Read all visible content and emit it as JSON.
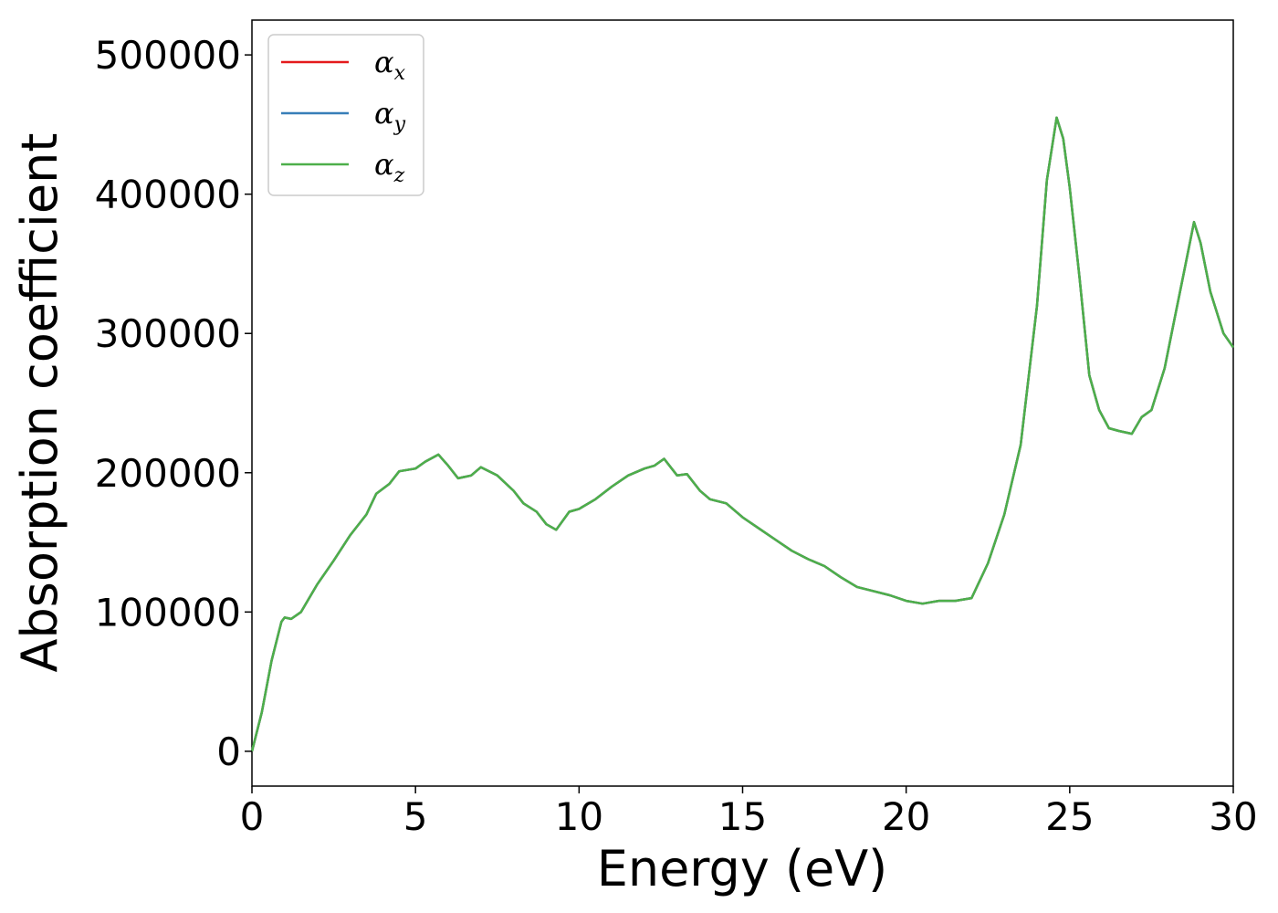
{
  "chart_data": {
    "type": "line",
    "xlabel": "Energy (eV)",
    "ylabel": "Absorption coefficient",
    "xlim": [
      0,
      30
    ],
    "ylim": [
      -25000,
      525000
    ],
    "x_ticks": [
      "0",
      "5",
      "10",
      "15",
      "20",
      "25",
      "30"
    ],
    "y_ticks": [
      "0",
      "100000",
      "200000",
      "300000",
      "400000",
      "500000"
    ],
    "grid": false,
    "legend_position": "top-left",
    "series": [
      {
        "name": "α_x",
        "legend_symbol": "α",
        "legend_subscript": "x",
        "color": "#e41a1c",
        "x": [
          0,
          0.3,
          0.6,
          0.9,
          1.0,
          1.2,
          1.5,
          2.0,
          2.5,
          3.0,
          3.5,
          3.8,
          4.2,
          4.5,
          5.0,
          5.3,
          5.7,
          6.0,
          6.3,
          6.7,
          7.0,
          7.5,
          8.0,
          8.3,
          8.7,
          9.0,
          9.3,
          9.7,
          10.0,
          10.5,
          11.0,
          11.5,
          12.0,
          12.3,
          12.6,
          13.0,
          13.3,
          13.7,
          14.0,
          14.5,
          15.0,
          15.5,
          16.0,
          16.5,
          17.0,
          17.5,
          18.0,
          18.5,
          19.0,
          19.5,
          20.0,
          20.5,
          21.0,
          21.5,
          22.0,
          22.5,
          23.0,
          23.5,
          24.0,
          24.3,
          24.6,
          24.8,
          25.0,
          25.3,
          25.6,
          25.9,
          26.2,
          26.5,
          26.9,
          27.2,
          27.5,
          27.9,
          28.2,
          28.5,
          28.8,
          29.0,
          29.3,
          29.7,
          30.0
        ],
        "values": [
          0,
          28000,
          65000,
          93000,
          96000,
          95000,
          100000,
          120000,
          137000,
          155000,
          170000,
          185000,
          192000,
          201000,
          203000,
          208000,
          213000,
          205000,
          196000,
          198000,
          204000,
          198000,
          187000,
          178000,
          172000,
          163000,
          159000,
          172000,
          174000,
          181000,
          190000,
          198000,
          203000,
          205000,
          210000,
          198000,
          199000,
          187000,
          181000,
          178000,
          168000,
          160000,
          152000,
          144000,
          138000,
          133000,
          125000,
          118000,
          115000,
          112000,
          108000,
          106000,
          108000,
          108000,
          110000,
          135000,
          170000,
          220000,
          320000,
          410000,
          455000,
          440000,
          405000,
          340000,
          270000,
          245000,
          232000,
          230000,
          228000,
          240000,
          245000,
          275000,
          310000,
          345000,
          380000,
          365000,
          330000,
          300000,
          290000
        ]
      },
      {
        "name": "α_y",
        "legend_symbol": "α",
        "legend_subscript": "y",
        "color": "#377eb8",
        "same_as": "α_x"
      },
      {
        "name": "α_z",
        "legend_symbol": "α",
        "legend_subscript": "z",
        "color": "#4daf4a",
        "same_as": "α_x"
      }
    ]
  }
}
